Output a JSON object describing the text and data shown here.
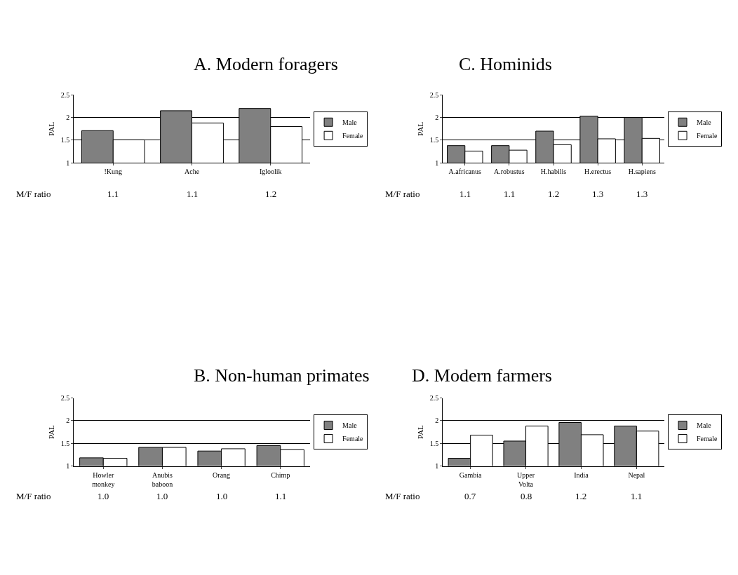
{
  "chart_data": [
    {
      "type": "bar",
      "title": "A. Modern foragers",
      "ylabel": "PAL",
      "categories": [
        "!Kung",
        "Ache",
        "Igloolik"
      ],
      "series": [
        {
          "name": "Male",
          "color": "#808080",
          "values": [
            1.71,
            2.15,
            2.2
          ]
        },
        {
          "name": "Female",
          "color": "#ffffff",
          "values": [
            1.51,
            1.88,
            1.8
          ]
        }
      ],
      "ylim": [
        1,
        2.5
      ],
      "yticks": [
        1,
        1.5,
        2,
        2.5
      ],
      "grid": "y",
      "legend": "right",
      "annotations": [
        "M/F ratio",
        {
          "text": "1.1",
          "x": "!Kung"
        },
        {
          "text": "1.1",
          "x": "Ache"
        },
        {
          "text": "1.2",
          "x": "Igloolik"
        }
      ]
    },
    {
      "type": "bar",
      "title": "C. Hominids",
      "ylabel": "PAL",
      "categories": [
        "A.africanus",
        "A.robustus",
        "H.habilis",
        "H.erectus",
        "H.sapiens"
      ],
      "series": [
        {
          "name": "Male",
          "color": "#808080",
          "values": [
            1.38,
            1.38,
            1.7,
            2.03,
            2.0
          ]
        },
        {
          "name": "Female",
          "color": "#ffffff",
          "values": [
            1.26,
            1.28,
            1.4,
            1.53,
            1.54
          ]
        }
      ],
      "ylim": [
        1,
        2.5
      ],
      "yticks": [
        1,
        1.5,
        2,
        2.5
      ],
      "grid": "y",
      "legend": "right",
      "annotations": [
        "M/F ratio",
        {
          "text": "1.1",
          "x": "A.africanus"
        },
        {
          "text": "1.1",
          "x": "A.robustus"
        },
        {
          "text": "1.2",
          "x": "H.habilis"
        },
        {
          "text": "1.3",
          "x": "H.erectus"
        },
        {
          "text": "1.3",
          "x": "H.sapiens"
        }
      ]
    },
    {
      "type": "bar",
      "title": "B. Non-human primates",
      "ylabel": "PAL",
      "categories": [
        "Howler monkey",
        "Anubis baboon",
        "Orang",
        "Chimp"
      ],
      "series": [
        {
          "name": "Male",
          "color": "#808080",
          "values": [
            1.18,
            1.41,
            1.33,
            1.45
          ]
        },
        {
          "name": "Female",
          "color": "#ffffff",
          "values": [
            1.17,
            1.41,
            1.38,
            1.36
          ]
        }
      ],
      "ylim": [
        1,
        2.5
      ],
      "yticks": [
        1,
        1.5,
        2,
        2.5
      ],
      "grid": "y",
      "legend": "right",
      "annotations": [
        "M/F ratio",
        {
          "text": "1.0",
          "x": "Howler monkey"
        },
        {
          "text": "1.0",
          "x": "Anubis baboon"
        },
        {
          "text": "1.0",
          "x": "Orang"
        },
        {
          "text": "1.1",
          "x": "Chimp"
        }
      ]
    },
    {
      "type": "bar",
      "title": "D. Modern farmers",
      "ylabel": "PAL",
      "categories": [
        "Gambia",
        "Upper Volta",
        "India",
        "Nepal"
      ],
      "series": [
        {
          "name": "Male",
          "color": "#808080",
          "values": [
            1.17,
            1.55,
            1.96,
            1.88
          ]
        },
        {
          "name": "Female",
          "color": "#ffffff",
          "values": [
            1.68,
            1.88,
            1.69,
            1.77
          ]
        }
      ],
      "ylim": [
        1,
        2.5
      ],
      "yticks": [
        1,
        1.5,
        2,
        2.5
      ],
      "grid": "y",
      "legend": "right",
      "annotations": [
        "M/F ratio",
        {
          "text": "0.7",
          "x": "Gambia"
        },
        {
          "text": "0.8",
          "x": "Upper Volta"
        },
        {
          "text": "1.2",
          "x": "India"
        },
        {
          "text": "1.1",
          "x": "Nepal"
        }
      ]
    }
  ]
}
